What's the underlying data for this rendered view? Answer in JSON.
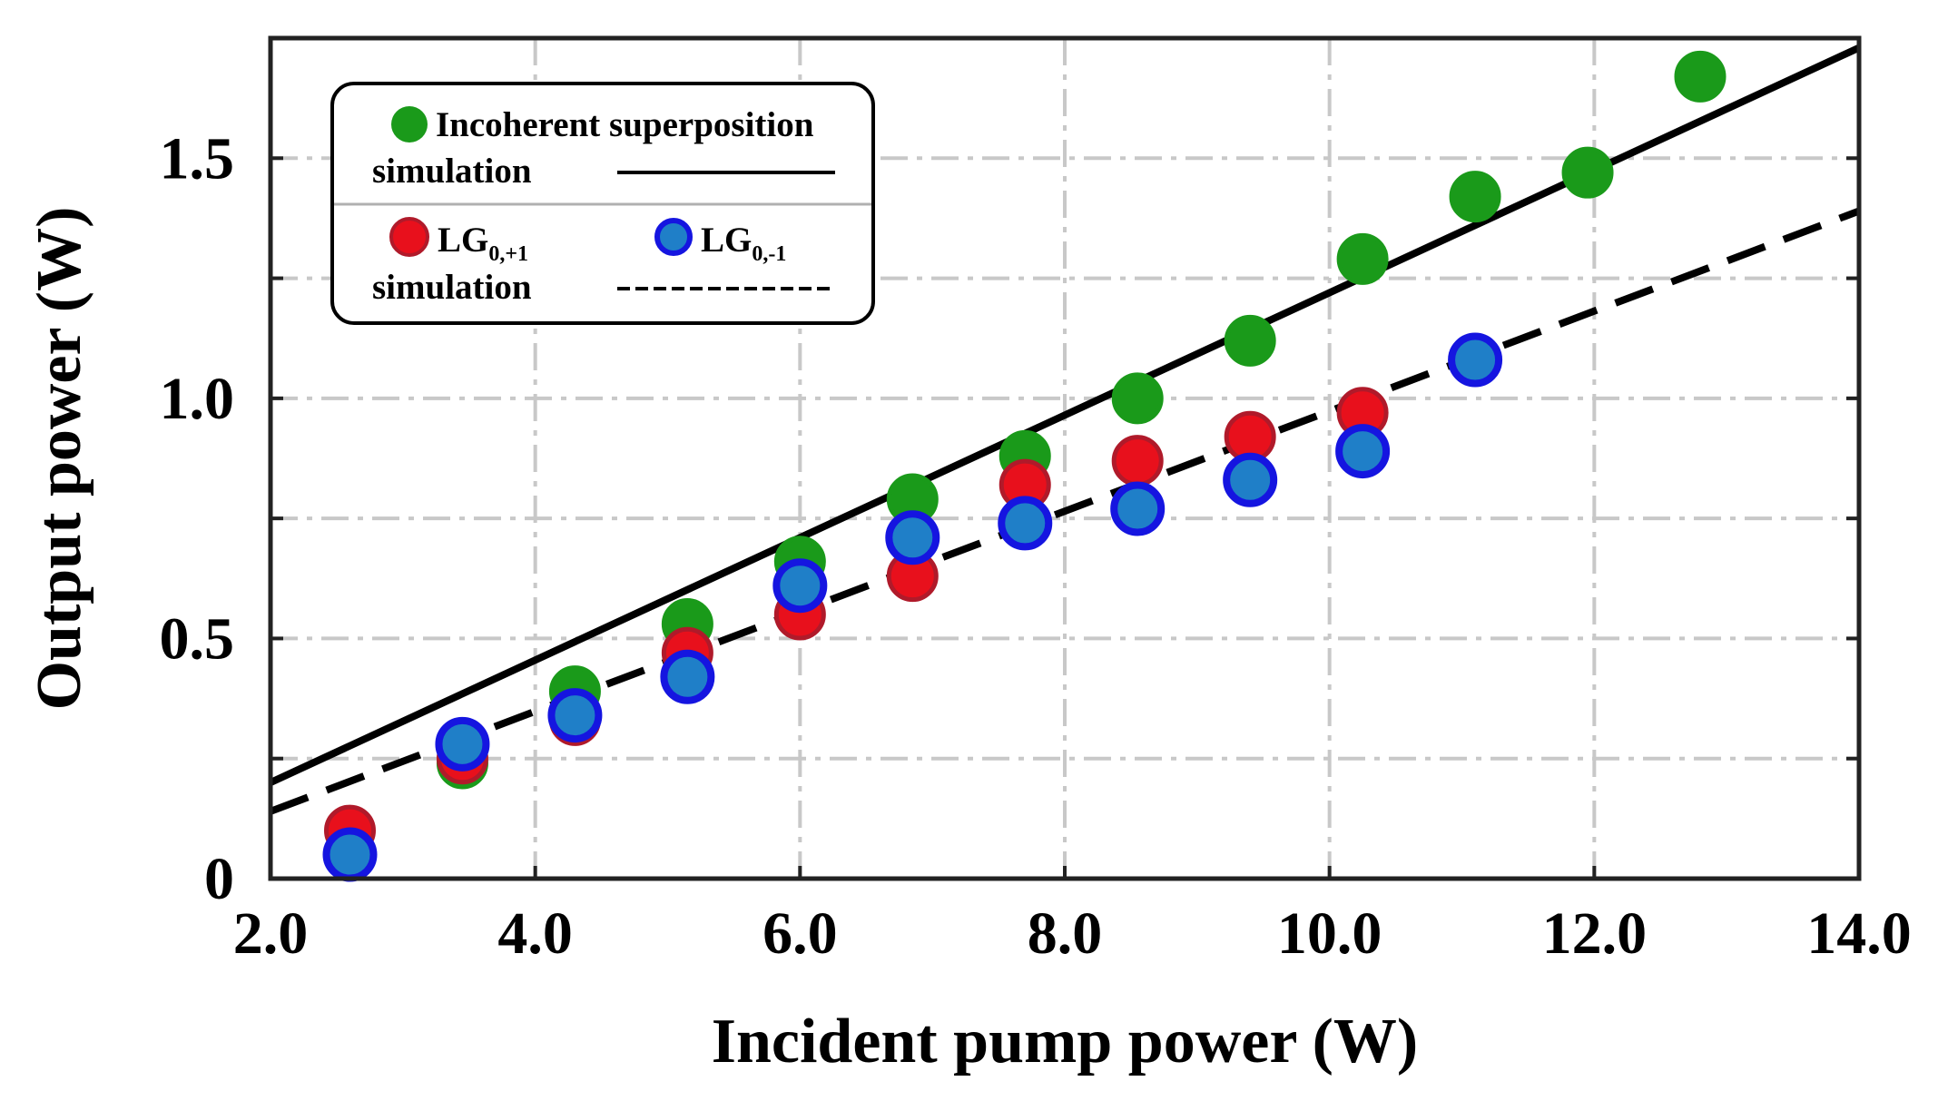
{
  "chart_data": {
    "type": "scatter",
    "xlabel": "Incident pump power (W)",
    "ylabel": "Output power (W)",
    "xlim": [
      2.0,
      14.0
    ],
    "ylim": [
      0,
      1.75
    ],
    "x_ticks": [
      2.0,
      4.0,
      6.0,
      8.0,
      10.0,
      12.0,
      14.0
    ],
    "x_tick_labels": [
      "2.0",
      "4.0",
      "6.0",
      "8.0",
      "10.0",
      "12.0",
      "14.0"
    ],
    "y_ticks": [
      0,
      0.25,
      0.5,
      0.75,
      1.0,
      1.25,
      1.5
    ],
    "y_tick_labels": [
      "0",
      "",
      "0.5",
      "",
      "1.0",
      "",
      "1.5"
    ],
    "grid": true,
    "legend_position": "top-left",
    "legend": {
      "incoherent_label": "Incoherent superposition",
      "sim_label_1": "simulation",
      "lg_plus_main": "LG",
      "lg_plus_sub": "0,+1",
      "lg_minus_main": "LG",
      "lg_minus_sub": "0,-1",
      "sim_label_2": "simulation"
    },
    "series": [
      {
        "key": "incoherent",
        "color": "#1a9a1a",
        "edge": "#1a9a1a",
        "x": [
          3.45,
          4.3,
          5.15,
          6.0,
          6.85,
          7.7,
          8.55,
          9.4,
          10.25,
          11.1,
          11.95,
          12.8
        ],
        "y": [
          0.24,
          0.39,
          0.53,
          0.66,
          0.79,
          0.88,
          1.0,
          1.12,
          1.29,
          1.42,
          1.47,
          1.67
        ]
      },
      {
        "key": "lg_plus",
        "color": "#e8101c",
        "edge": "#b01a2a",
        "x": [
          2.6,
          3.45,
          4.3,
          5.15,
          6.0,
          6.85,
          7.7,
          8.55,
          9.4,
          10.25
        ],
        "y": [
          0.1,
          0.25,
          0.33,
          0.47,
          0.55,
          0.63,
          0.82,
          0.87,
          0.92,
          0.97
        ]
      },
      {
        "key": "lg_minus",
        "color": "#1f7fc8",
        "edge": "#1515e0",
        "x": [
          2.6,
          3.45,
          4.3,
          5.15,
          6.0,
          6.85,
          7.7,
          8.55,
          9.4,
          10.25,
          11.1
        ],
        "y": [
          0.05,
          0.28,
          0.34,
          0.42,
          0.61,
          0.71,
          0.74,
          0.77,
          0.83,
          0.89,
          1.08
        ]
      }
    ],
    "lines": [
      {
        "key": "incoherent_sim",
        "style": "solid",
        "color": "#000000",
        "x": [
          2.0,
          14.0
        ],
        "y": [
          0.2,
          1.73
        ]
      },
      {
        "key": "lg_sim",
        "style": "dashed",
        "color": "#000000",
        "x": [
          2.0,
          14.0
        ],
        "y": [
          0.14,
          1.39
        ]
      }
    ]
  }
}
